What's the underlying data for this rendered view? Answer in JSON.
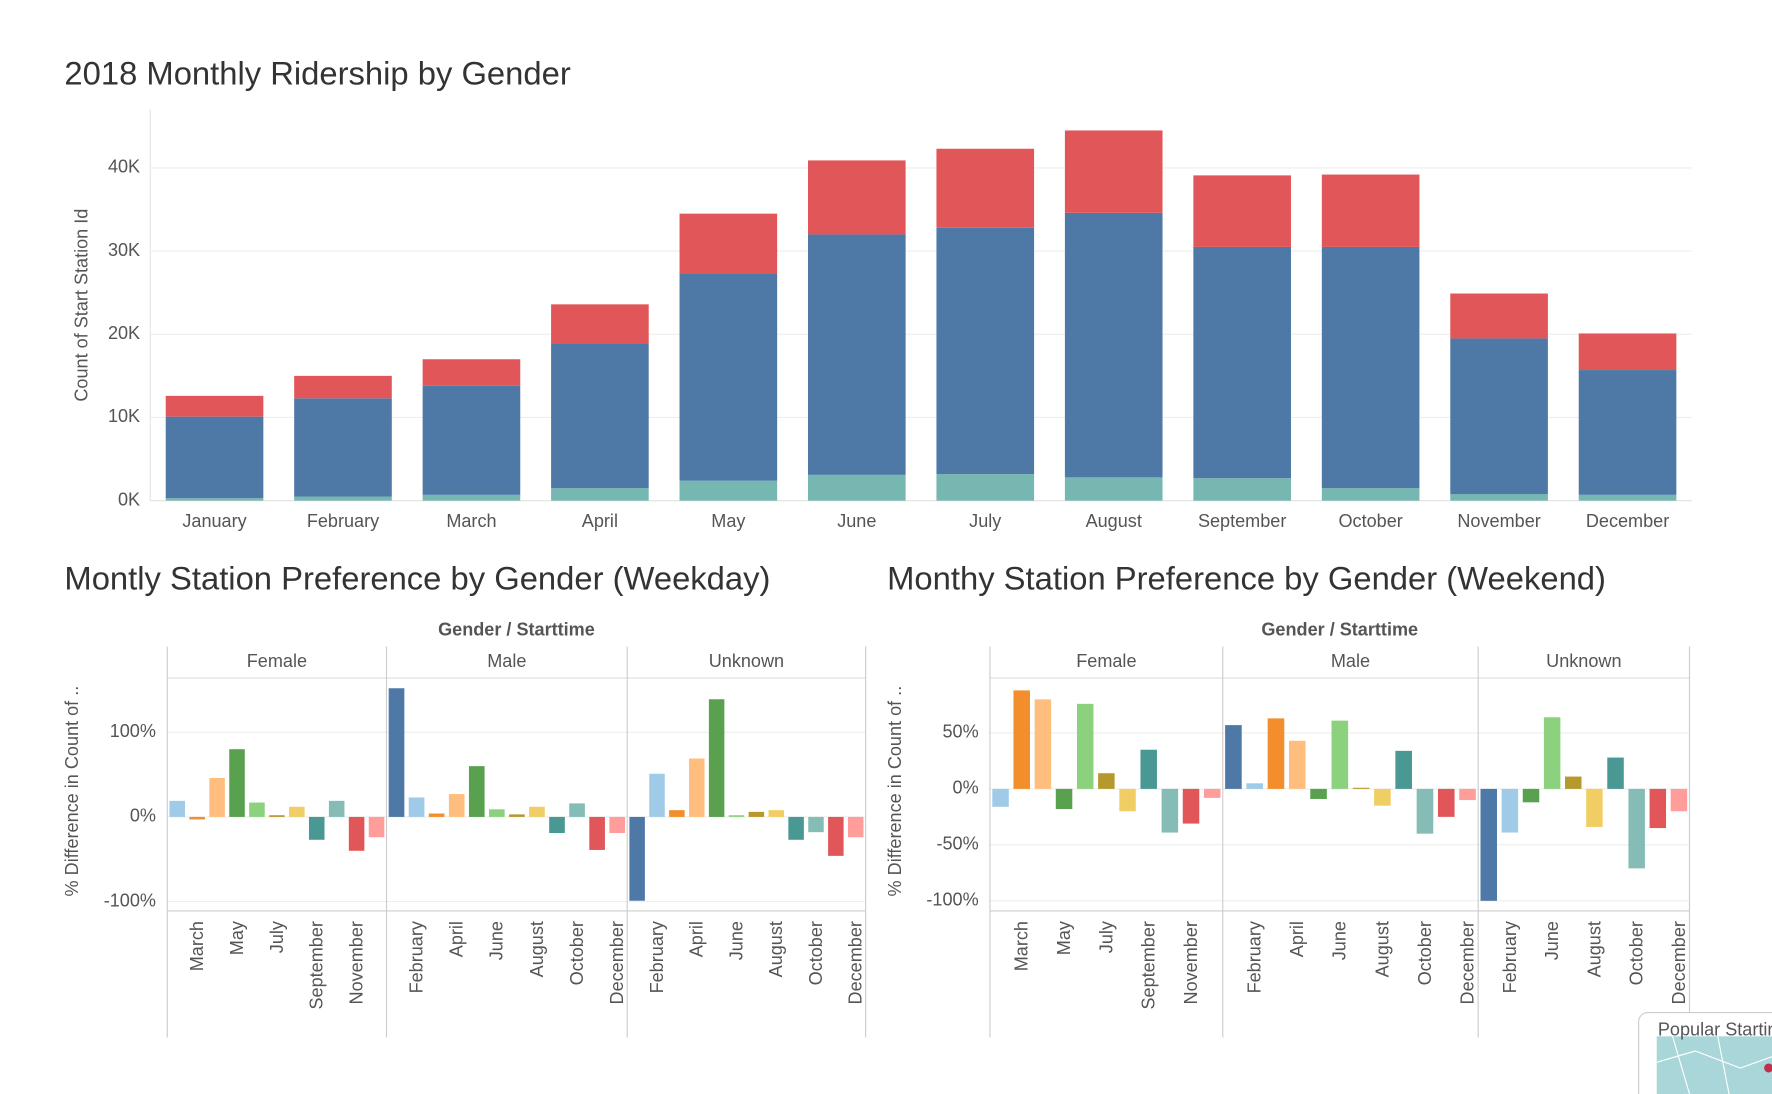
{
  "chart_data": [
    {
      "type": "stacked_bar",
      "title": "2018 Monthly Ridership by Gender",
      "ylabel": "Count of Start Station Id",
      "categories": [
        "January",
        "February",
        "March",
        "April",
        "May",
        "June",
        "July",
        "August",
        "September",
        "October",
        "November",
        "December"
      ],
      "series": [
        {
          "color": "#76b7b2",
          "values": [
            300,
            500,
            700,
            1500,
            2400,
            3100,
            3200,
            2800,
            2700,
            1500,
            800,
            700
          ]
        },
        {
          "color": "#4e79a7",
          "values": [
            9800,
            11800,
            13100,
            17400,
            24900,
            28900,
            29600,
            31800,
            27800,
            29000,
            18700,
            15000
          ]
        },
        {
          "color": "#e15759",
          "values": [
            2500,
            2700,
            3200,
            4700,
            7200,
            8900,
            9500,
            9900,
            8600,
            8700,
            5400,
            4400
          ]
        }
      ],
      "ylim": [
        0,
        47000
      ],
      "yticks": [
        {
          "value": 0,
          "label": "0K"
        },
        {
          "value": 10000,
          "label": "10K"
        },
        {
          "value": 20000,
          "label": "20K"
        },
        {
          "value": 30000,
          "label": "30K"
        },
        {
          "value": 40000,
          "label": "40K"
        }
      ],
      "grid": true
    },
    {
      "type": "faceted_bar",
      "title": "Montly Station Preference by Gender (Weekday)",
      "header": "Gender / Starttime",
      "ylabel": "% Difference in Count of ..",
      "ylim": [
        -111,
        164
      ],
      "yticks": [
        {
          "value": 100,
          "label": "100%"
        },
        {
          "value": 0,
          "label": "0%"
        },
        {
          "value": -100,
          "label": "-100%"
        }
      ],
      "grid": true,
      "facets": [
        {
          "name": "Female",
          "categories": [
            null,
            "March",
            null,
            "May",
            null,
            "July",
            null,
            "September",
            null,
            "November",
            null
          ],
          "values": [
            19,
            -3,
            46,
            80,
            17,
            2,
            12,
            -27,
            19,
            -40,
            -24
          ],
          "colors": [
            "#a0cbe8",
            "#f28e2b",
            "#ffbe7d",
            "#59a14f",
            "#8cd17d",
            "#b6992d",
            "#f1ce63",
            "#499894",
            "#86bcb6",
            "#e15759",
            "#ff9d9a"
          ]
        },
        {
          "name": "Male",
          "categories": [
            null,
            "February",
            null,
            "April",
            null,
            "June",
            null,
            "August",
            null,
            "October",
            null,
            "December"
          ],
          "values": [
            152,
            23,
            4,
            27,
            60,
            9,
            3,
            12,
            -19,
            16,
            -39,
            -19
          ],
          "colors": [
            "#4e79a7",
            "#a0cbe8",
            "#f28e2b",
            "#ffbe7d",
            "#59a14f",
            "#8cd17d",
            "#b6992d",
            "#f1ce63",
            "#499894",
            "#86bcb6",
            "#e15759",
            "#ff9d9a"
          ]
        },
        {
          "name": "Unknown",
          "categories": [
            null,
            "February",
            null,
            "April",
            null,
            "June",
            null,
            "August",
            null,
            "October",
            null,
            "December"
          ],
          "values": [
            -99,
            51,
            8,
            69,
            139,
            2,
            6,
            8,
            -27,
            -18,
            -46,
            -24
          ],
          "colors": [
            "#4e79a7",
            "#a0cbe8",
            "#f28e2b",
            "#ffbe7d",
            "#59a14f",
            "#8cd17d",
            "#b6992d",
            "#f1ce63",
            "#499894",
            "#86bcb6",
            "#e15759",
            "#ff9d9a"
          ]
        }
      ]
    },
    {
      "type": "faceted_bar",
      "title": "Monthy Station Preference by Gender (Weekend)",
      "header": "Gender / Starttime",
      "ylabel": "% Difference in Count of ..",
      "ylim": [
        -109,
        99
      ],
      "yticks": [
        {
          "value": 50,
          "label": "50%"
        },
        {
          "value": 0,
          "label": "0%"
        },
        {
          "value": -50,
          "label": "-50%"
        },
        {
          "value": -100,
          "label": "-100%"
        }
      ],
      "grid": true,
      "facets": [
        {
          "name": "Female",
          "categories": [
            null,
            "March",
            null,
            "May",
            null,
            "July",
            null,
            "September",
            null,
            "November",
            null
          ],
          "values": [
            -16,
            88,
            80,
            -18,
            76,
            14,
            -20,
            35,
            -39,
            -31,
            -8
          ],
          "colors": [
            "#a0cbe8",
            "#f28e2b",
            "#ffbe7d",
            "#59a14f",
            "#8cd17d",
            "#b6992d",
            "#f1ce63",
            "#499894",
            "#86bcb6",
            "#e15759",
            "#ff9d9a"
          ]
        },
        {
          "name": "Male",
          "categories": [
            null,
            "February",
            null,
            "April",
            null,
            "June",
            null,
            "August",
            null,
            "October",
            null,
            "December"
          ],
          "values": [
            57,
            5,
            63,
            43,
            -9,
            61,
            1,
            -15,
            34,
            -40,
            -25,
            -10
          ],
          "colors": [
            "#4e79a7",
            "#a0cbe8",
            "#f28e2b",
            "#ffbe7d",
            "#59a14f",
            "#8cd17d",
            "#b6992d",
            "#f1ce63",
            "#499894",
            "#86bcb6",
            "#e15759",
            "#ff9d9a"
          ]
        },
        {
          "name": "Unknown",
          "categories": [
            null,
            "February",
            null,
            "June",
            null,
            "August",
            null,
            "October",
            null,
            "December"
          ],
          "values": [
            -100,
            -39,
            -12,
            64,
            11,
            -34,
            28,
            -71,
            -35,
            -20
          ],
          "colors": [
            "#4e79a7",
            "#a0cbe8",
            "#59a14f",
            "#8cd17d",
            "#b6992d",
            "#f1ce63",
            "#499894",
            "#86bcb6",
            "#e15759",
            "#ff9d9a"
          ]
        }
      ]
    }
  ],
  "thumbnail": {
    "title": "Popular Starting Locations"
  }
}
